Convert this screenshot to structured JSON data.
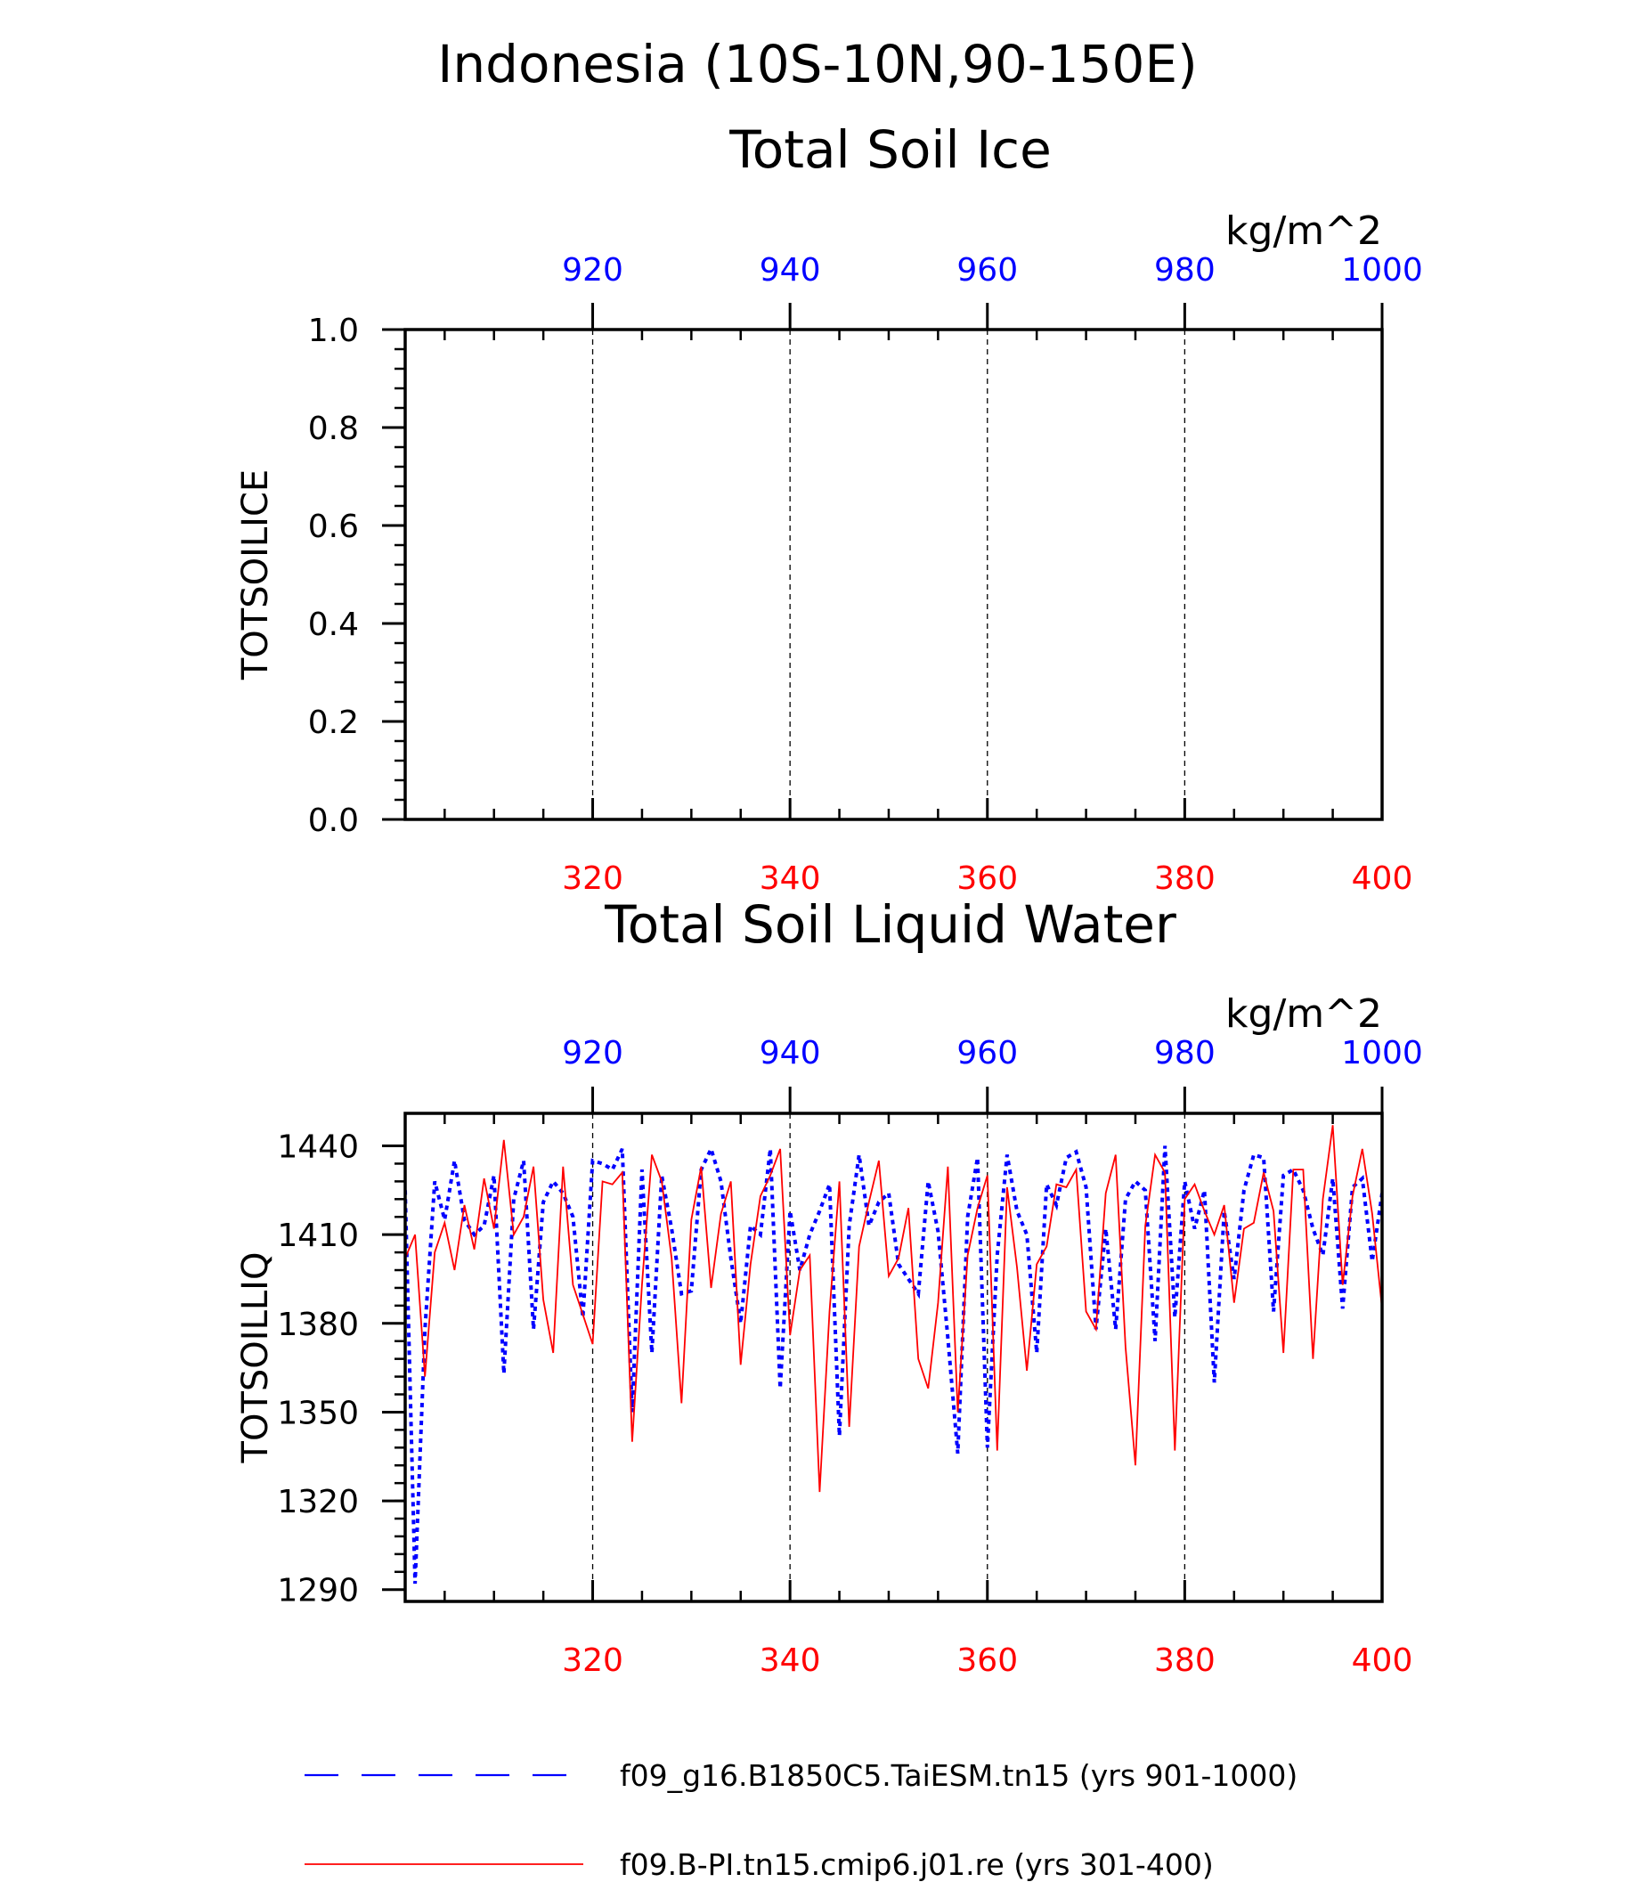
{
  "header": {
    "title_line1": "Indonesia (10S-10N,90-150E)"
  },
  "legend": {
    "entries": [
      {
        "label": "f09_g16.B1850C5.TaiESM.tn15 (yrs 901-1000)",
        "color": "#0000ff",
        "style": "dashed"
      },
      {
        "label": "f09.B-PI.tn15.cmip6.j01.re (yrs 301-400)",
        "color": "#ff0000",
        "style": "solid"
      }
    ]
  },
  "chart_data": [
    {
      "type": "line",
      "title": "Total Soil Ice",
      "ylabel": "TOTSOILICE",
      "units": "kg/m^2",
      "ylim": [
        0.0,
        1.0
      ],
      "yticks": [
        "0.0",
        "0.2",
        "0.4",
        "0.6",
        "0.8",
        "1.0"
      ],
      "top_axis": {
        "range": [
          901,
          1000
        ],
        "ticks": [
          "920",
          "940",
          "960",
          "980",
          "1000"
        ],
        "color": "#0000ff"
      },
      "bottom_axis": {
        "range": [
          301,
          400
        ],
        "ticks": [
          "320",
          "340",
          "360",
          "380",
          "400"
        ],
        "color": "#ff0000"
      },
      "grid": "vertical dashed at major ticks",
      "series": []
    },
    {
      "type": "line",
      "title": "Total Soil Liquid Water",
      "ylabel": "TOTSOILLIQ",
      "units": "kg/m^2",
      "ylim": [
        1286,
        1451
      ],
      "yticks": [
        "1290",
        "1320",
        "1350",
        "1380",
        "1410",
        "1440"
      ],
      "top_axis": {
        "range": [
          901,
          1000
        ],
        "ticks": [
          "920",
          "940",
          "960",
          "980",
          "1000"
        ],
        "color": "#0000ff"
      },
      "bottom_axis": {
        "range": [
          301,
          400
        ],
        "ticks": [
          "320",
          "340",
          "360",
          "380",
          "400"
        ],
        "color": "#ff0000"
      },
      "grid": "vertical dashed at major ticks",
      "series": [
        {
          "name": "f09_g16.B1850C5.TaiESM.tn15 (yrs 901-1000)",
          "axis": "top",
          "color": "#0000ff",
          "style": "dashed",
          "x_start": 901,
          "values": [
            1425,
            1292,
            1378,
            1428,
            1415,
            1435,
            1415,
            1410,
            1413,
            1430,
            1363,
            1422,
            1435,
            1378,
            1421,
            1428,
            1424,
            1416,
            1382,
            1435,
            1434,
            1432,
            1439,
            1350,
            1432,
            1370,
            1430,
            1412,
            1390,
            1391,
            1432,
            1439,
            1428,
            1402,
            1380,
            1413,
            1410,
            1439,
            1358,
            1418,
            1398,
            1410,
            1418,
            1427,
            1342,
            1413,
            1437,
            1413,
            1421,
            1424,
            1400,
            1395,
            1390,
            1428,
            1411,
            1375,
            1336,
            1416,
            1436,
            1338,
            1403,
            1437,
            1418,
            1410,
            1370,
            1427,
            1420,
            1436,
            1438,
            1426,
            1378,
            1412,
            1378,
            1422,
            1428,
            1425,
            1374,
            1440,
            1382,
            1428,
            1412,
            1425,
            1360,
            1418,
            1395,
            1425,
            1437,
            1436,
            1384,
            1430,
            1432,
            1425,
            1412,
            1403,
            1429,
            1385,
            1426,
            1429,
            1401,
            1424
          ]
        },
        {
          "name": "f09.B-PI.tn15.cmip6.j01.re (yrs 301-400)",
          "axis": "bottom",
          "color": "#ff0000",
          "style": "solid",
          "x_start": 301,
          "values": [
            1402,
            1410,
            1362,
            1404,
            1414,
            1398,
            1420,
            1405,
            1429,
            1412,
            1442,
            1410,
            1416,
            1433,
            1388,
            1370,
            1433,
            1393,
            1383,
            1373,
            1428,
            1427,
            1431,
            1340,
            1393,
            1437,
            1428,
            1402,
            1353,
            1415,
            1433,
            1392,
            1417,
            1428,
            1366,
            1400,
            1423,
            1430,
            1439,
            1376,
            1398,
            1403,
            1323,
            1384,
            1428,
            1345,
            1406,
            1421,
            1435,
            1396,
            1402,
            1419,
            1368,
            1358,
            1387,
            1433,
            1350,
            1403,
            1419,
            1430,
            1337,
            1426,
            1399,
            1364,
            1400,
            1406,
            1427,
            1426,
            1432,
            1384,
            1378,
            1424,
            1437,
            1372,
            1332,
            1413,
            1437,
            1431,
            1337,
            1422,
            1427,
            1418,
            1410,
            1420,
            1387,
            1412,
            1414,
            1431,
            1418,
            1370,
            1432,
            1432,
            1368,
            1422,
            1447,
            1393,
            1423,
            1439,
            1417,
            1385
          ]
        }
      ]
    }
  ]
}
